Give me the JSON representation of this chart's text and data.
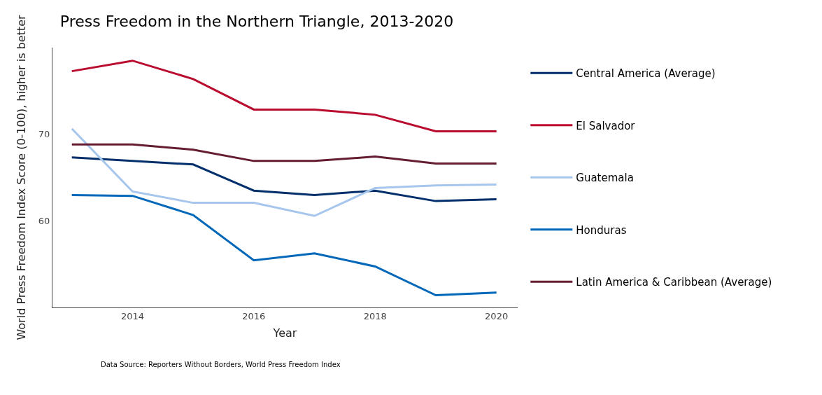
{
  "chart_data": {
    "type": "line",
    "title": "Press Freedom in the Northern Triangle, 2013-2020",
    "xlabel": "Year",
    "ylabel": "World Press Freedom Index Score (0-100), higher is better",
    "x": [
      2013,
      2014,
      2015,
      2016,
      2017,
      2018,
      2019,
      2020
    ],
    "series": [
      {
        "name": "Central America (Average)",
        "color": "#002f6c",
        "values": [
          67.3,
          66.9,
          66.5,
          63.5,
          63.0,
          63.5,
          62.3,
          62.5
        ]
      },
      {
        "name": "El Salvador",
        "color": "#ba0c2f",
        "values": [
          77.2,
          78.4,
          76.3,
          72.8,
          72.8,
          72.2,
          70.3,
          70.3
        ]
      },
      {
        "name": "Guatemala",
        "color": "#a7c6ed",
        "values": [
          70.6,
          63.4,
          62.1,
          62.1,
          60.6,
          63.8,
          64.1,
          64.2
        ]
      },
      {
        "name": "Honduras",
        "color": "#0067b9",
        "values": [
          63.0,
          62.9,
          60.7,
          55.5,
          56.3,
          54.8,
          51.5,
          51.8
        ]
      },
      {
        "name": "Latin America & Caribbean (Average)",
        "color": "#651d32",
        "values": [
          68.8,
          68.8,
          68.2,
          66.9,
          66.9,
          67.4,
          66.6,
          66.6
        ]
      }
    ],
    "xlim": [
      2012.68,
      2020.35
    ],
    "xticks": [
      2014,
      2016,
      2018,
      2020
    ],
    "ylim": [
      50.1,
      79.9
    ],
    "yticks": [
      60,
      70
    ],
    "grid": false,
    "legend": "right",
    "marker": "none",
    "line_style": "solid",
    "annotations": [
      "Data Source: Reporters Without Borders, World Press Freedom Index"
    ]
  }
}
